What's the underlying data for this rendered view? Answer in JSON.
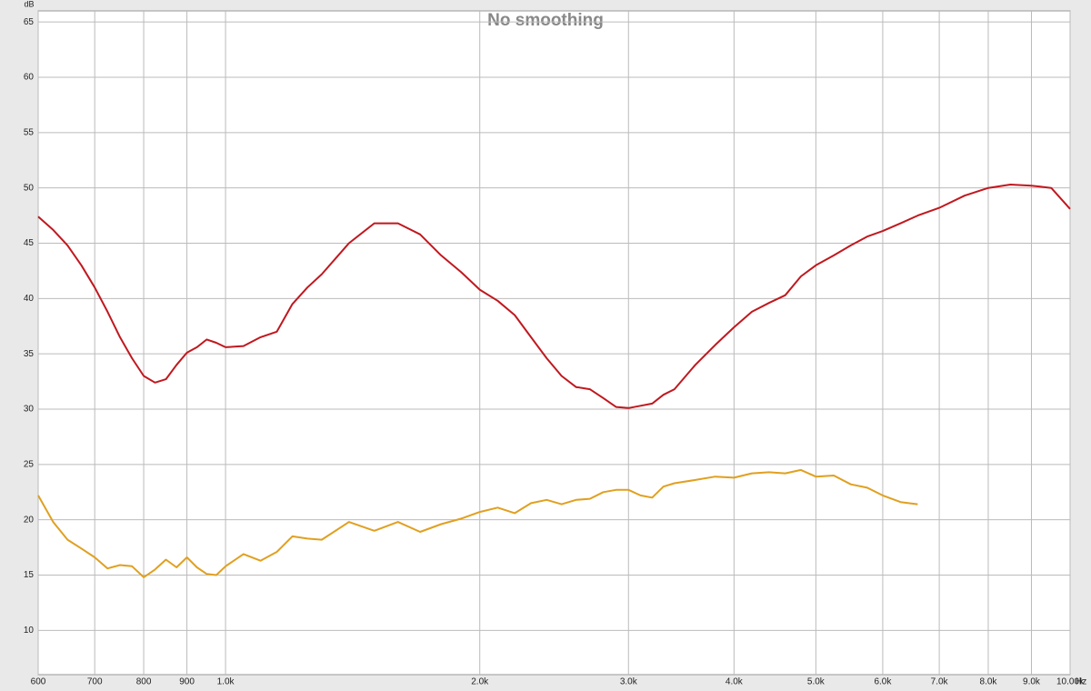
{
  "chart_data": {
    "type": "line",
    "title": "No smoothing",
    "y_label": "dB",
    "x_label": "Hz",
    "xscale": "log",
    "grid": true,
    "xlim": [
      600,
      10000
    ],
    "ylim": [
      6,
      66
    ],
    "yticks": [
      10,
      15,
      20,
      25,
      30,
      35,
      40,
      45,
      50,
      55,
      60,
      65
    ],
    "xticks": [
      600,
      700,
      800,
      900,
      {
        "value": 1000,
        "label": "1.0k"
      },
      {
        "value": 2000,
        "label": "2.0k"
      },
      {
        "value": 3000,
        "label": "3.0k"
      },
      {
        "value": 4000,
        "label": "4.0k"
      },
      {
        "value": 5000,
        "label": "5.0k"
      },
      {
        "value": 6000,
        "label": "6.0k"
      },
      {
        "value": 7000,
        "label": "7.0k"
      },
      {
        "value": 8000,
        "label": "8.0k"
      },
      {
        "value": 9000,
        "label": "9.0k"
      },
      {
        "value": 10000,
        "label": "10.00k"
      }
    ],
    "x": [
      600,
      625,
      650,
      675,
      700,
      725,
      750,
      775,
      800,
      825,
      850,
      875,
      900,
      925,
      950,
      975,
      1000,
      1050,
      1100,
      1150,
      1200,
      1250,
      1300,
      1400,
      1500,
      1600,
      1700,
      1800,
      1900,
      2000,
      2100,
      2200,
      2300,
      2400,
      2500,
      2600,
      2700,
      2800,
      2900,
      3000,
      3100,
      3200,
      3300,
      3400,
      3600,
      3800,
      4000,
      4200,
      4400,
      4600,
      4800,
      5000,
      5250,
      5500,
      5750,
      6000,
      6300,
      6600,
      7000,
      7500,
      8000,
      8500,
      9000,
      9500,
      10000
    ],
    "series": [
      {
        "color": "#c0181e",
        "values": [
          47.4,
          46.2,
          44.8,
          43.0,
          41.0,
          38.8,
          36.5,
          34.6,
          33.0,
          32.4,
          32.7,
          34.0,
          35.1,
          35.6,
          36.3,
          36.0,
          35.6,
          35.7,
          36.5,
          37.0,
          39.5,
          41.0,
          42.2,
          45.0,
          46.8,
          46.8,
          45.8,
          43.9,
          42.4,
          40.8,
          39.8,
          38.5,
          36.5,
          34.6,
          33.0,
          32.0,
          31.8,
          31.0,
          30.2,
          30.1,
          30.3,
          30.5,
          31.3,
          31.8,
          34.0,
          35.8,
          37.4,
          38.8,
          39.6,
          40.3,
          42.0,
          43.0,
          43.9,
          44.8,
          45.6,
          46.1,
          46.8,
          47.5,
          48.2,
          49.3,
          50.0,
          50.3,
          50.2,
          50.0,
          48.1
        ]
      },
      {
        "color": "#e0a020",
        "values": [
          22.2,
          19.8,
          18.2,
          17.4,
          16.6,
          15.6,
          15.9,
          15.8,
          14.8,
          15.5,
          16.4,
          15.7,
          16.6,
          15.7,
          15.1,
          15.0,
          15.8,
          16.9,
          16.3,
          17.1,
          18.5,
          18.3,
          18.2,
          19.8,
          19.0,
          19.8,
          18.9,
          19.6,
          20.1,
          20.7,
          21.1,
          20.6,
          21.5,
          21.8,
          21.4,
          21.8,
          21.9,
          22.5,
          22.7,
          22.7,
          22.2,
          22.0,
          23.0,
          23.3,
          23.6,
          23.9,
          23.8,
          24.2,
          24.3,
          24.2,
          24.5,
          23.9,
          24.0,
          23.2,
          22.9,
          22.2,
          21.6,
          21.4,
          null,
          null,
          null,
          null,
          null,
          null,
          null
        ]
      }
    ]
  }
}
